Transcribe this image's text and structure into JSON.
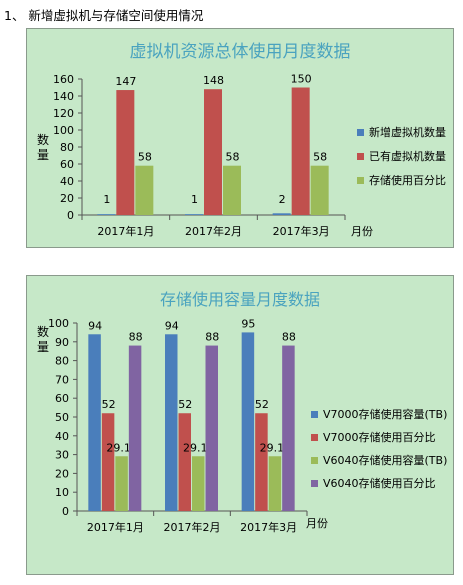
{
  "heading": "1、 新增虚拟机与存储空间使用情况",
  "chart_data": [
    {
      "type": "bar",
      "title": "虚拟机资源总体使用月度数据",
      "xlabel": "月份",
      "ylabel": "数量",
      "ylim": [
        0,
        160
      ],
      "yticks": [
        0,
        20,
        40,
        60,
        80,
        100,
        120,
        140,
        160
      ],
      "categories": [
        "2017年1月",
        "2017年2月",
        "2017年3月"
      ],
      "series": [
        {
          "name": "新增虚拟机数量",
          "values": [
            1,
            1,
            2
          ],
          "labels": [
            "1",
            "1",
            "2"
          ],
          "color": "#4a7ebb"
        },
        {
          "name": "已有虚拟机数量",
          "values": [
            147,
            148,
            150
          ],
          "labels": [
            "147",
            "148",
            "150"
          ],
          "color": "#c0504d"
        },
        {
          "name": "存储使用百分比",
          "values": [
            58,
            58,
            58
          ],
          "labels": [
            "58",
            "58",
            "58"
          ],
          "color": "#9bbb59"
        }
      ],
      "grid": false,
      "legend": "right"
    },
    {
      "type": "bar",
      "title": "存储使用容量月度数据",
      "xlabel": "月份",
      "ylabel": "数量",
      "ylim": [
        0,
        100
      ],
      "yticks": [
        0,
        10,
        20,
        30,
        40,
        50,
        60,
        70,
        80,
        90,
        100
      ],
      "categories": [
        "2017年1月",
        "2017年2月",
        "2017年3月"
      ],
      "series": [
        {
          "name": "V7000存储使用容量(TB)",
          "values": [
            94,
            94,
            95
          ],
          "labels": [
            "94",
            "94",
            "95"
          ],
          "color": "#4a7ebb"
        },
        {
          "name": "V7000存储使用百分比",
          "values": [
            52,
            52,
            52
          ],
          "labels": [
            "52",
            "52",
            "52"
          ],
          "color": "#c0504d"
        },
        {
          "name": "V6040存储使用容量(TB)",
          "values": [
            29.12,
            29.12,
            29.12
          ],
          "labels": [
            "29.12",
            "29.12",
            "29.12"
          ],
          "color": "#9bbb59"
        },
        {
          "name": "V6040存储使用百分比",
          "values": [
            88,
            88,
            88
          ],
          "labels": [
            "88",
            "88",
            "88"
          ],
          "color": "#8064a2"
        }
      ],
      "grid": false,
      "legend": "right"
    }
  ]
}
